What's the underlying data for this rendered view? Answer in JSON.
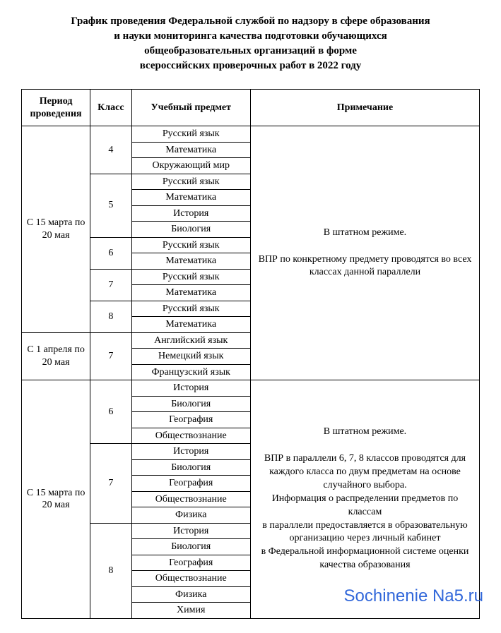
{
  "title_lines": [
    "График проведения Федеральной службой по надзору в сфере образования",
    "и науки мониторинга качества подготовки обучающихся",
    "общеобразовательных организаций в форме",
    "всероссийских проверочных работ в 2022 году"
  ],
  "columns": {
    "period": "Период проведения",
    "class": "Класс",
    "subject": "Учебный предмет",
    "note": "Примечание"
  },
  "period1": "С 15 марта по 20 мая",
  "period2": "С 1 апреля по 20 мая",
  "period3": "С 15 марта по 20 мая",
  "class4": "4",
  "class5": "5",
  "class6": "6",
  "class7": "7",
  "class8": "8",
  "subjects": {
    "russian": "Русский язык",
    "math": "Математика",
    "world": "Окружающий мир",
    "history": "История",
    "biology": "Биология",
    "english": "Английский язык",
    "german": "Немецкий язык",
    "french": "Французский язык",
    "geography": "География",
    "social": "Обществознание",
    "physics": "Физика",
    "chemistry": "Химия"
  },
  "note1_line1": "В штатном режиме.",
  "note1_line2": "ВПР по конкретному предмету проводятся во всех классах данной параллели",
  "note2_line1": "В штатном режиме.",
  "note2_line2": "ВПР в параллели 6, 7, 8 классов проводятся для каждого класса по двум предметам на основе случайного выбора.",
  "note2_line3": "Информация о распределении предметов по классам",
  "note2_line4": "в параллели предоставляется в образовательную организацию через личный кабинет",
  "note2_line5": "в Федеральной информационной системе оценки качества образования",
  "watermark": "Sochinenie Na5.ru",
  "style": {
    "type": "table",
    "background_color": "#ffffff",
    "text_color": "#000000",
    "border_color": "#000000",
    "watermark_color": "#2860d8",
    "title_fontsize": 15,
    "body_fontsize": 14,
    "font_family": "Times New Roman",
    "col_widths_pct": [
      15,
      9,
      26,
      50
    ]
  }
}
